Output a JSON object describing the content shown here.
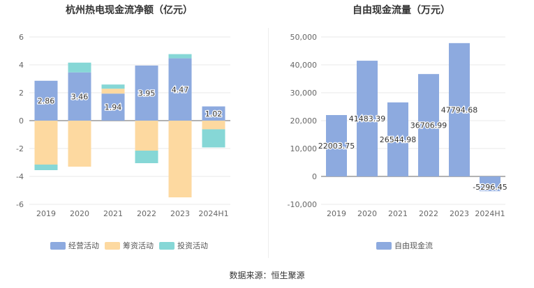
{
  "source_label": "数据来源：恒生聚源",
  "colors": {
    "operating": "#8daadf",
    "financing": "#fdd9a0",
    "investing": "#86d7d6",
    "fcf": "#8daadf"
  },
  "chart_data": [
    {
      "type": "bar",
      "stacked": true,
      "title": "杭州热电现金流净额（亿元）",
      "categories": [
        "2019",
        "2020",
        "2021",
        "2022",
        "2023",
        "2024H1"
      ],
      "ylim": [
        -6,
        6
      ],
      "yticks": [
        -6,
        -4,
        -2,
        0,
        2,
        4,
        6
      ],
      "grid": true,
      "legend_position": "bottom",
      "series": [
        {
          "name": "经营活动",
          "values": [
            2.86,
            3.46,
            1.94,
            3.95,
            4.47,
            1.02
          ],
          "labels": [
            "2.86",
            "3.46",
            "1.94",
            "3.95",
            "4.47",
            "1.02"
          ]
        },
        {
          "name": "筹资活动",
          "values": [
            -3.15,
            -3.3,
            0.35,
            -2.15,
            -5.5,
            -0.62
          ]
        },
        {
          "name": "投资活动",
          "values": [
            -0.4,
            0.7,
            0.3,
            -0.9,
            0.3,
            -1.3
          ]
        }
      ]
    },
    {
      "type": "bar",
      "title": "自由现金流量（万元）",
      "categories": [
        "2019",
        "2020",
        "2021",
        "2022",
        "2023",
        "2024H1"
      ],
      "ylim": [
        -10000,
        50000
      ],
      "yticks": [
        -10000,
        0,
        10000,
        20000,
        30000,
        40000,
        50000
      ],
      "ytick_labels": [
        "-10,000",
        "0",
        "10,000",
        "20,000",
        "30,000",
        "40,000",
        "50,000"
      ],
      "grid": true,
      "legend_position": "bottom",
      "series": [
        {
          "name": "自由现金流",
          "values": [
            22003.75,
            41483.39,
            26544.98,
            36706.99,
            47794.68,
            -5296.45
          ],
          "labels": [
            "22003.75",
            "41483.39",
            "26544.98",
            "36706.99",
            "47794.68",
            "-5296.45"
          ]
        }
      ]
    }
  ]
}
